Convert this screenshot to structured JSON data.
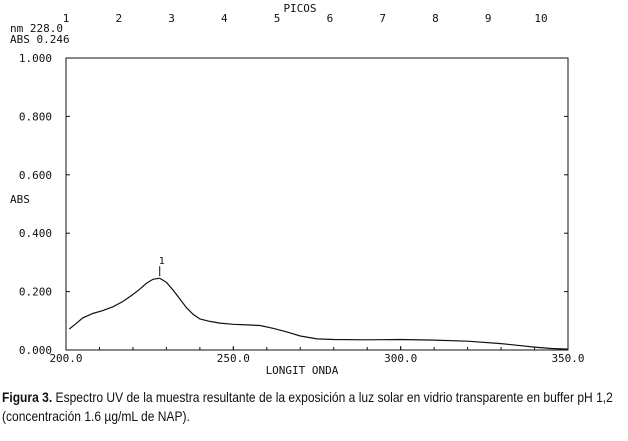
{
  "chart_data": {
    "type": "line",
    "header": {
      "nm_label": "nm 228.0",
      "abs_label": "ABS 0.246"
    },
    "top_axis": {
      "title": "PICOS",
      "ticks": [
        "1",
        "2",
        "3",
        "4",
        "5",
        "6",
        "7",
        "8",
        "9",
        "10"
      ]
    },
    "xlabel": "LONGIT ONDA",
    "ylabel": "ABS",
    "xlim": [
      200.0,
      350.0
    ],
    "ylim": [
      0.0,
      1.0
    ],
    "x_ticks": [
      "200.0",
      "250.0",
      "300.0",
      "350.0"
    ],
    "y_ticks": [
      "1.000",
      "0.800",
      "0.600",
      "0.400",
      "0.200",
      "0.000"
    ],
    "peak_marker": {
      "label": "1",
      "x": 228.0,
      "y": 0.246
    },
    "series": [
      {
        "x": [
          201,
          203,
          205,
          208,
          211,
          214,
          217,
          220,
          222,
          224,
          226,
          228,
          230,
          232,
          234,
          236,
          238,
          240,
          243,
          246,
          250,
          254,
          258,
          262,
          266,
          270,
          275,
          280,
          290,
          300,
          310,
          320,
          330,
          340,
          345,
          350
        ],
        "y": [
          0.072,
          0.09,
          0.11,
          0.125,
          0.135,
          0.148,
          0.166,
          0.19,
          0.208,
          0.228,
          0.242,
          0.246,
          0.232,
          0.205,
          0.175,
          0.145,
          0.122,
          0.106,
          0.098,
          0.092,
          0.088,
          0.086,
          0.084,
          0.074,
          0.062,
          0.048,
          0.038,
          0.036,
          0.035,
          0.036,
          0.034,
          0.03,
          0.022,
          0.01,
          0.005,
          0.003
        ]
      }
    ]
  },
  "caption": {
    "label": "Figura 3.",
    "text": " Espectro UV de la muestra resultante de la exposición a luz solar en vidrio transparente en buffer pH 1,2 (concentración 1.6 µg/mL de NAP)."
  }
}
